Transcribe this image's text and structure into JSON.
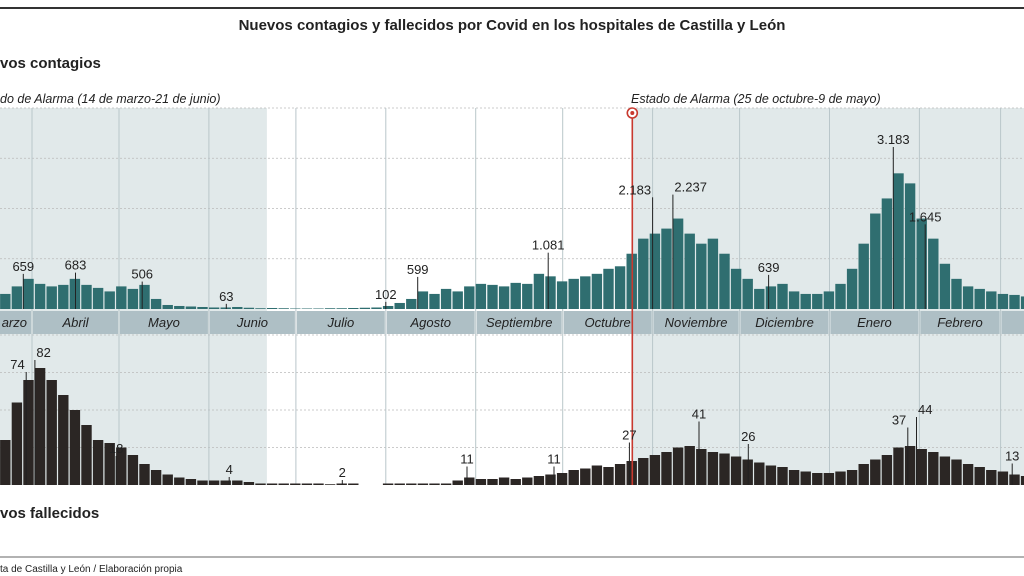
{
  "title": "Nuevos contagios y fallecidos por Covid en los hospitales de Castilla y León",
  "source": "ta de Castilla y León / Elaboración propia",
  "colors": {
    "contagios": "#2f6e70",
    "fallecidos": "#2b2624",
    "alarm_shade": "#e1e9ea",
    "month_band": "#aebfc5",
    "alarm_line": "#c8392f"
  },
  "alarm_periods": [
    {
      "label": "do de Alarma (14 de marzo-21 de junio)",
      "start": "2020-03-14",
      "end": "2020-06-21"
    },
    {
      "label": "Estado de Alarma (25 de octubre-9 de mayo)",
      "start": "2020-10-25",
      "end": "2021-05-09"
    }
  ],
  "months": [
    {
      "label": "arzo",
      "start": "2020-03-01"
    },
    {
      "label": "Abril",
      "start": "2020-04-01"
    },
    {
      "label": "Mayo",
      "start": "2020-05-01"
    },
    {
      "label": "Junio",
      "start": "2020-06-01"
    },
    {
      "label": "Julio",
      "start": "2020-07-01"
    },
    {
      "label": "Agosto",
      "start": "2020-08-01"
    },
    {
      "label": "Septiembre",
      "start": "2020-09-01"
    },
    {
      "label": "Octubre",
      "start": "2020-10-01"
    },
    {
      "label": "Noviembre",
      "start": "2020-11-01"
    },
    {
      "label": "Diciembre",
      "start": "2020-12-01"
    },
    {
      "label": "Enero",
      "start": "2021-01-01"
    },
    {
      "label": "Febrero",
      "start": "2021-02-01"
    },
    {
      "label": "",
      "start": "2021-03-01"
    }
  ],
  "chart_data": [
    {
      "type": "bar",
      "title": "vos contagios",
      "ylim": [
        0,
        4000
      ],
      "grid": true,
      "dates": [
        "2020-03-21",
        "2020-03-25",
        "2020-03-29",
        "2020-04-02",
        "2020-04-06",
        "2020-04-10",
        "2020-04-14",
        "2020-04-18",
        "2020-04-22",
        "2020-04-26",
        "2020-04-30",
        "2020-05-04",
        "2020-05-08",
        "2020-05-12",
        "2020-05-16",
        "2020-05-20",
        "2020-05-24",
        "2020-05-28",
        "2020-06-01",
        "2020-06-05",
        "2020-06-09",
        "2020-06-13",
        "2020-06-17",
        "2020-06-21",
        "2020-06-25",
        "2020-06-29",
        "2020-07-03",
        "2020-07-07",
        "2020-07-11",
        "2020-07-15",
        "2020-07-19",
        "2020-07-23",
        "2020-07-27",
        "2020-07-31",
        "2020-08-04",
        "2020-08-08",
        "2020-08-12",
        "2020-08-16",
        "2020-08-20",
        "2020-08-24",
        "2020-08-28",
        "2020-09-01",
        "2020-09-05",
        "2020-09-09",
        "2020-09-13",
        "2020-09-17",
        "2020-09-21",
        "2020-09-25",
        "2020-09-29",
        "2020-10-03",
        "2020-10-07",
        "2020-10-11",
        "2020-10-15",
        "2020-10-19",
        "2020-10-23",
        "2020-10-27",
        "2020-10-31",
        "2020-11-04",
        "2020-11-08",
        "2020-11-12",
        "2020-11-16",
        "2020-11-20",
        "2020-11-24",
        "2020-11-28",
        "2020-12-02",
        "2020-12-06",
        "2020-12-10",
        "2020-12-14",
        "2020-12-18",
        "2020-12-22",
        "2020-12-26",
        "2020-12-30",
        "2021-01-03",
        "2021-01-07",
        "2021-01-11",
        "2021-01-15",
        "2021-01-19",
        "2021-01-23",
        "2021-01-27",
        "2021-01-31",
        "2021-02-04",
        "2021-02-08",
        "2021-02-12",
        "2021-02-16",
        "2021-02-20",
        "2021-02-24",
        "2021-02-28",
        "2021-03-04",
        "2021-03-08"
      ],
      "values": [
        300,
        450,
        600,
        500,
        450,
        480,
        600,
        480,
        420,
        350,
        450,
        400,
        480,
        200,
        80,
        60,
        50,
        40,
        30,
        30,
        40,
        25,
        15,
        20,
        15,
        10,
        10,
        10,
        15,
        15,
        20,
        25,
        30,
        60,
        120,
        200,
        350,
        300,
        400,
        350,
        450,
        500,
        480,
        450,
        520,
        500,
        700,
        650,
        550,
        600,
        650,
        700,
        800,
        850,
        1100,
        1400,
        1500,
        1600,
        1800,
        1500,
        1300,
        1400,
        1100,
        800,
        600,
        400,
        450,
        500,
        350,
        300,
        300,
        350,
        500,
        800,
        1300,
        1900,
        2200,
        2700,
        2500,
        1800,
        1400,
        900,
        600,
        450,
        400,
        350,
        300,
        280,
        250
      ],
      "annotations": [
        {
          "date": "2020-03-29",
          "value": 659,
          "label": "659"
        },
        {
          "date": "2020-04-16",
          "value": 683,
          "label": "683"
        },
        {
          "date": "2020-05-09",
          "value": 506,
          "label": "506"
        },
        {
          "date": "2020-06-07",
          "value": 63,
          "label": "63"
        },
        {
          "date": "2020-08-01",
          "value": 102,
          "label": "102"
        },
        {
          "date": "2020-08-12",
          "value": 599,
          "label": "599"
        },
        {
          "date": "2020-09-26",
          "value": 1081,
          "label": "1.081"
        },
        {
          "date": "2020-11-01",
          "value": 2183,
          "label": "2.183"
        },
        {
          "date": "2020-11-08",
          "value": 2237,
          "label": "2.237"
        },
        {
          "date": "2020-12-11",
          "value": 639,
          "label": "639"
        },
        {
          "date": "2021-01-23",
          "value": 3183,
          "label": "3.183"
        },
        {
          "date": "2021-02-03",
          "value": 1645,
          "label": "1.645"
        }
      ]
    },
    {
      "type": "bar",
      "title": "vos fallecidos",
      "ylim": [
        0,
        100
      ],
      "grid": true,
      "dates": [
        "2020-03-21",
        "2020-03-25",
        "2020-03-29",
        "2020-04-02",
        "2020-04-06",
        "2020-04-10",
        "2020-04-14",
        "2020-04-18",
        "2020-04-22",
        "2020-04-26",
        "2020-04-30",
        "2020-05-04",
        "2020-05-08",
        "2020-05-12",
        "2020-05-16",
        "2020-05-20",
        "2020-05-24",
        "2020-05-28",
        "2020-06-01",
        "2020-06-05",
        "2020-06-09",
        "2020-06-13",
        "2020-06-17",
        "2020-06-21",
        "2020-06-25",
        "2020-06-29",
        "2020-07-03",
        "2020-07-07",
        "2020-07-11",
        "2020-07-15",
        "2020-07-19",
        "2020-07-23",
        "2020-07-27",
        "2020-07-31",
        "2020-08-04",
        "2020-08-08",
        "2020-08-12",
        "2020-08-16",
        "2020-08-20",
        "2020-08-24",
        "2020-08-28",
        "2020-09-01",
        "2020-09-05",
        "2020-09-09",
        "2020-09-13",
        "2020-09-17",
        "2020-09-21",
        "2020-09-25",
        "2020-09-29",
        "2020-10-03",
        "2020-10-07",
        "2020-10-11",
        "2020-10-15",
        "2020-10-19",
        "2020-10-23",
        "2020-10-27",
        "2020-10-31",
        "2020-11-04",
        "2020-11-08",
        "2020-11-12",
        "2020-11-16",
        "2020-11-20",
        "2020-11-24",
        "2020-11-28",
        "2020-12-02",
        "2020-12-06",
        "2020-12-10",
        "2020-12-14",
        "2020-12-18",
        "2020-12-22",
        "2020-12-26",
        "2020-12-30",
        "2021-01-03",
        "2021-01-07",
        "2021-01-11",
        "2021-01-15",
        "2021-01-19",
        "2021-01-23",
        "2021-01-27",
        "2021-01-31",
        "2021-02-04",
        "2021-02-08",
        "2021-02-12",
        "2021-02-16",
        "2021-02-20",
        "2021-02-24",
        "2021-02-28",
        "2021-03-04",
        "2021-03-08"
      ],
      "values": [
        30,
        55,
        70,
        78,
        70,
        60,
        50,
        40,
        30,
        28,
        25,
        20,
        14,
        10,
        7,
        5,
        4,
        3,
        3,
        3,
        3,
        2,
        1,
        1,
        1,
        1,
        1,
        1,
        0.5,
        1,
        1,
        0,
        0,
        1,
        1,
        1,
        1,
        1,
        1,
        3,
        5,
        4,
        4,
        5,
        4,
        5,
        6,
        7,
        8,
        10,
        11,
        13,
        12,
        14,
        16,
        18,
        20,
        22,
        25,
        26,
        24,
        22,
        21,
        19,
        17,
        15,
        13,
        12,
        10,
        9,
        8,
        8,
        9,
        10,
        14,
        17,
        20,
        25,
        26,
        24,
        22,
        19,
        17,
        14,
        12,
        10,
        9,
        7,
        6
      ],
      "annotations": [
        {
          "date": "2020-03-30",
          "value": 74,
          "label": "74"
        },
        {
          "date": "2020-04-02",
          "value": 82,
          "label": "82"
        },
        {
          "date": "2020-04-30",
          "value": 18,
          "label": "18"
        },
        {
          "date": "2020-06-08",
          "value": 4,
          "label": "4"
        },
        {
          "date": "2020-07-17",
          "value": 2,
          "label": "2"
        },
        {
          "date": "2020-08-29",
          "value": 11,
          "label": "11"
        },
        {
          "date": "2020-09-28",
          "value": 11,
          "label": "11"
        },
        {
          "date": "2020-10-24",
          "value": 27,
          "label": "27"
        },
        {
          "date": "2020-11-17",
          "value": 41,
          "label": "41"
        },
        {
          "date": "2020-12-04",
          "value": 26,
          "label": "26"
        },
        {
          "date": "2021-01-28",
          "value": 37,
          "label": "37"
        },
        {
          "date": "2021-01-31",
          "value": 44,
          "label": "44"
        },
        {
          "date": "2021-03-05",
          "value": 13,
          "label": "13"
        }
      ]
    }
  ]
}
